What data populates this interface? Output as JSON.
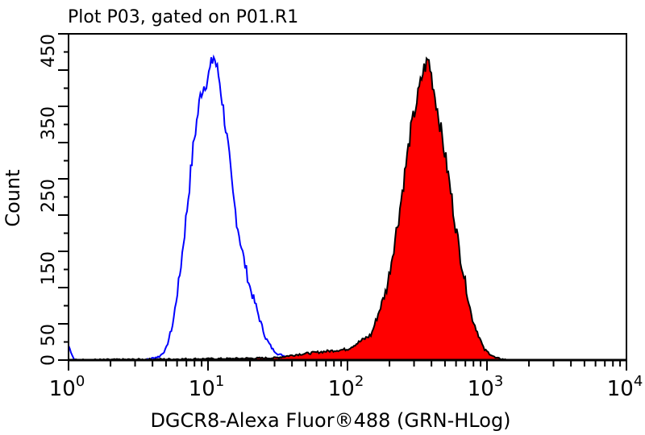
{
  "chart_data": {
    "type": "area",
    "title": "Plot P03, gated on P01.R1",
    "xlabel": "DGCR8-Alexa Fluor®488 (GRN-HLog)",
    "ylabel": "Count",
    "xscale": "log",
    "xlim": [
      1,
      10000
    ],
    "ylim": [
      0,
      450
    ],
    "x_tick_labels": [
      {
        "base": "10",
        "exp": "0"
      },
      {
        "base": "10",
        "exp": "1"
      },
      {
        "base": "10",
        "exp": "2"
      },
      {
        "base": "10",
        "exp": "3"
      },
      {
        "base": "10",
        "exp": "4"
      }
    ],
    "y_tick_labels": [
      "0",
      "50",
      "150",
      "250",
      "350",
      "450"
    ],
    "grid": false,
    "series": [
      {
        "style": "outline",
        "color": "#0000ff",
        "points": [
          [
            1,
            20
          ],
          [
            1.1,
            0
          ],
          [
            3.5,
            0
          ],
          [
            4.5,
            5
          ],
          [
            5,
            15
          ],
          [
            5.6,
            50
          ],
          [
            6.3,
            120
          ],
          [
            7,
            200
          ],
          [
            7.9,
            300
          ],
          [
            8.9,
            370
          ],
          [
            10,
            390
          ],
          [
            11,
            420
          ],
          [
            12,
            390
          ],
          [
            13,
            340
          ],
          [
            14,
            290
          ],
          [
            15,
            230
          ],
          [
            16.5,
            180
          ],
          [
            18,
            140
          ],
          [
            20,
            100
          ],
          [
            22,
            75
          ],
          [
            24,
            50
          ],
          [
            26,
            30
          ],
          [
            29,
            15
          ],
          [
            32,
            8
          ],
          [
            40,
            3
          ],
          [
            50,
            0
          ],
          [
            10000,
            0
          ]
        ]
      },
      {
        "style": "filled",
        "color": "#ff0000",
        "outline_color": "#000000",
        "points": [
          [
            1,
            0
          ],
          [
            15,
            2
          ],
          [
            30,
            3
          ],
          [
            45,
            8
          ],
          [
            70,
            12
          ],
          [
            100,
            15
          ],
          [
            148,
            35
          ],
          [
            192,
            100
          ],
          [
            234,
            200
          ],
          [
            286,
            320
          ],
          [
            350,
            400
          ],
          [
            381,
            415
          ],
          [
            456,
            330
          ],
          [
            523,
            260
          ],
          [
            635,
            150
          ],
          [
            776,
            60
          ],
          [
            950,
            15
          ],
          [
            1150,
            3
          ],
          [
            1400,
            0
          ],
          [
            10000,
            0
          ]
        ]
      }
    ]
  }
}
